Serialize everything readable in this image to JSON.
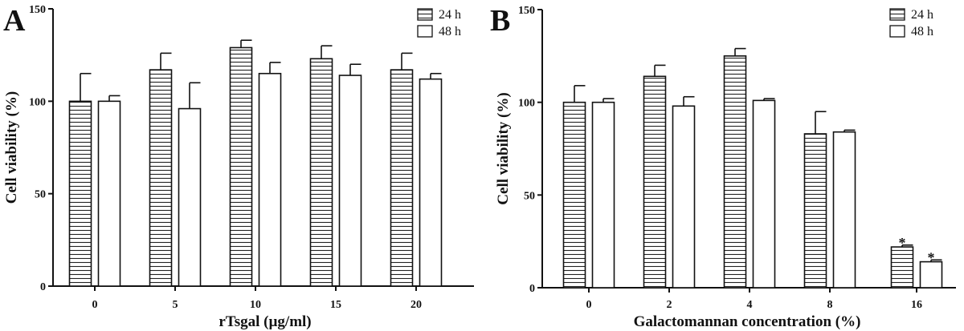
{
  "figure": {
    "panel_a_label": "A",
    "panel_b_label": "B"
  },
  "chart_data": [
    {
      "type": "bar",
      "panel": "A",
      "categories": [
        "0",
        "5",
        "10",
        "15",
        "20"
      ],
      "series": [
        {
          "name": "24 h",
          "pattern": "hlines",
          "values": [
            100,
            117,
            129,
            123,
            117
          ],
          "errors": [
            15,
            9,
            4,
            7,
            9
          ]
        },
        {
          "name": "48 h",
          "pattern": "open",
          "values": [
            100,
            96,
            115,
            114,
            112
          ],
          "errors": [
            3,
            14,
            6,
            6,
            3
          ]
        }
      ],
      "annotations": [
        "",
        "",
        "",
        "",
        ""
      ],
      "xlabel": "rTsgal (µg/ml)",
      "ylabel": "Cell viability (%)",
      "ylim": [
        0,
        150
      ],
      "yticks": [
        0,
        50,
        100,
        150
      ],
      "legend_position": "top-right",
      "grid": false
    },
    {
      "type": "bar",
      "panel": "B",
      "categories": [
        "0",
        "2",
        "4",
        "8",
        "16"
      ],
      "series": [
        {
          "name": "24 h",
          "pattern": "hlines",
          "values": [
            100,
            114,
            125,
            83,
            22
          ],
          "errors": [
            9,
            6,
            4,
            12,
            1
          ]
        },
        {
          "name": "48 h",
          "pattern": "open",
          "values": [
            100,
            98,
            101,
            84,
            14
          ],
          "errors": [
            2,
            5,
            1,
            1,
            1
          ]
        }
      ],
      "annotations_24h": [
        "",
        "",
        "",
        "",
        "*"
      ],
      "annotations_48h": [
        "",
        "",
        "",
        "",
        "*"
      ],
      "xlabel": "Galactomannan concentration (%)",
      "ylabel": "Cell viability (%)",
      "ylim": [
        0,
        150
      ],
      "yticks": [
        0,
        50,
        100,
        150
      ],
      "legend_position": "top-right",
      "grid": false
    }
  ]
}
